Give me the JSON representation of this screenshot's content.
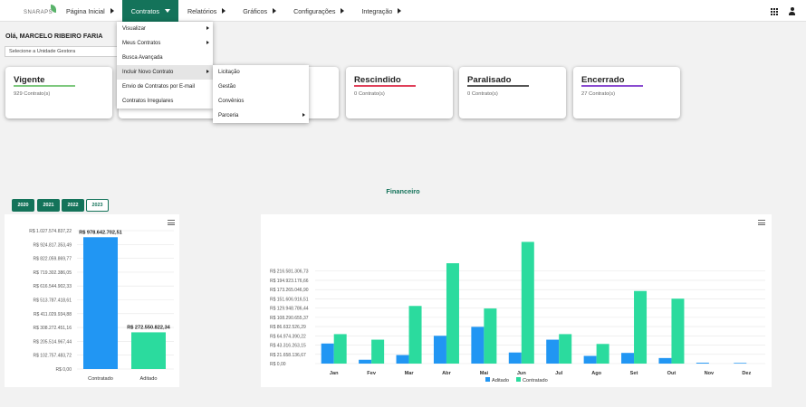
{
  "header": {
    "logo_text": "SNARAPS",
    "nav": [
      "Página Inicial",
      "Contratos",
      "Relatórios",
      "Gráficos",
      "Configurações",
      "Integração"
    ],
    "grid_icon": "apps-grid-icon",
    "user_icon": "user-icon"
  },
  "greeting": "Olá, MARCELO RIBEIRO FARIA",
  "unit_select": {
    "value": "Selecione a Unidade Gestora"
  },
  "contratos_menu": {
    "items": [
      "Visualizar",
      "Meus Contratos",
      "Busca Avançada",
      "Incluir Novo Contrato",
      "Envio de Contratos por E-mail",
      "Contratos Irregulares"
    ],
    "submenu": [
      "Licitação",
      "Gestão",
      "Convênios",
      "Parceria"
    ]
  },
  "cards": [
    {
      "title": "Vigente",
      "count": "929 Contrato(s)",
      "line_color": "#7ec87e"
    },
    {
      "title": "Rescindido",
      "count": "0 Contrato(s)",
      "line_color": "#e0405a"
    },
    {
      "title": "Paralisado",
      "count": "0 Contrato(s)",
      "line_color": "#555555"
    },
    {
      "title": "Encerrado",
      "count": "27 Contrato(s)",
      "line_color": "#8a4bd0"
    }
  ],
  "financeiro": {
    "title": "Financeiro",
    "years": [
      "2020",
      "2021",
      "2022",
      "2023"
    ],
    "selected_year": "2023"
  },
  "colors": {
    "accent": "#14735a",
    "contratado": "#2bdb9e",
    "aditado": "#2196f3"
  },
  "chart_data": [
    {
      "type": "bar",
      "categories": [
        "Contratado",
        "Aditado"
      ],
      "values": [
        978642702.51,
        272550822.34
      ],
      "data_labels": [
        "R$ 978.642.702,51",
        "R$ 272.550.822,34"
      ],
      "bar_colors": [
        "#2196f3",
        "#2bdb9e"
      ],
      "ylim": [
        0,
        1027574837.22
      ],
      "ytick_labels": [
        "R$ 1.027.574.837,22",
        "R$ 924.817.353,49",
        "R$ 822.059.869,77",
        "R$ 719.302.386,05",
        "R$ 616.544.902,33",
        "R$ 513.787.418,61",
        "R$ 411.029.934,88",
        "R$ 308.272.451,16",
        "R$ 205.514.967,44",
        "R$ 102.757.483,72",
        "R$ 0,00"
      ]
    },
    {
      "type": "bar",
      "categories": [
        "Jan",
        "Fev",
        "Mar",
        "Abr",
        "Mai",
        "Jun",
        "Jul",
        "Ago",
        "Set",
        "Out",
        "Nov",
        "Dez"
      ],
      "series": [
        {
          "name": "Aditado",
          "color": "#2196f3",
          "values": [
            47000000,
            9000000,
            20000000,
            65000000,
            86000000,
            26000000,
            56000000,
            18000000,
            25000000,
            13000000,
            2000000,
            1500000
          ]
        },
        {
          "name": "Contratado",
          "color": "#2bdb9e",
          "values": [
            69000000,
            56000000,
            135000000,
            235000000,
            129000000,
            285000000,
            69000000,
            46000000,
            170000000,
            152000000,
            0,
            0
          ]
        }
      ],
      "ylim": [
        0,
        305000000
      ],
      "ytick_labels": [
        "R$ 0,00",
        "R$ 21.658.136,67",
        "R$ 43.316.263,15",
        "R$ 64.974.390,22",
        "R$ 86.632.526,29",
        "R$ 108.290.655,37",
        "R$ 129.948.786,44",
        "R$ 151.606.916,51",
        "R$ 173.265.046,90",
        "R$ 194.923.176,66",
        "R$ 216.581.306,73"
      ],
      "ytick_values": [
        0,
        21658136.67,
        43316263.15,
        64974390.22,
        86632526.29,
        108290655.37,
        129948786.44,
        151606916.51,
        173265046.9,
        194923176.66,
        216581306.73
      ]
    }
  ]
}
